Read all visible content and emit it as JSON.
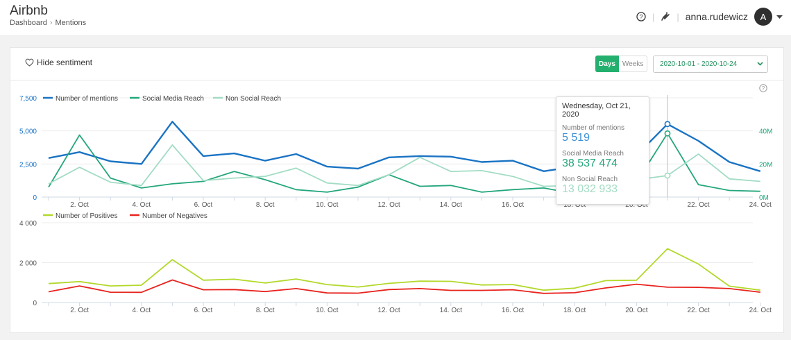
{
  "header": {
    "title": "Airbnb",
    "breadcrumb": [
      "Dashboard",
      "Mentions"
    ],
    "user": "anna.rudewicz",
    "avatar_letter": "A",
    "separator": "|",
    "crumb_separator": "›"
  },
  "toolbar": {
    "hide_sentiment": "Hide sentiment",
    "period_buttons": [
      "Days",
      "Weeks"
    ],
    "active_period": "Days",
    "date_range": "2020-10-01 - 2020-10-24"
  },
  "colors": {
    "mentions": "#1a73c4",
    "social": "#23a67c",
    "nonsocial": "#a2dcc4",
    "positives": "#b2d92a",
    "negatives": "#e8231e",
    "accent": "#23b06e"
  },
  "tooltip": {
    "date": "Wednesday, Oct 21, 2020",
    "items": [
      {
        "label": "Number of mentions",
        "value": "5 519"
      },
      {
        "label": "Social Media Reach",
        "value": "38 537 474"
      },
      {
        "label": "Non Social Reach",
        "value": "13 032 933"
      }
    ]
  },
  "chart_data": [
    {
      "type": "line",
      "x": [
        "2020-10-01",
        "2020-10-02",
        "2020-10-03",
        "2020-10-04",
        "2020-10-05",
        "2020-10-06",
        "2020-10-07",
        "2020-10-08",
        "2020-10-09",
        "2020-10-10",
        "2020-10-11",
        "2020-10-12",
        "2020-10-13",
        "2020-10-14",
        "2020-10-15",
        "2020-10-16",
        "2020-10-17",
        "2020-10-18",
        "2020-10-19",
        "2020-10-20",
        "2020-10-21",
        "2020-10-22",
        "2020-10-23",
        "2020-10-24"
      ],
      "xticks": [
        "2. Oct",
        "4. Oct",
        "6. Oct",
        "8. Oct",
        "10. Oct",
        "12. Oct",
        "14. Oct",
        "16. Oct",
        "18. Oct",
        "20. Oct",
        "22. Oct",
        "24. Oct"
      ],
      "legend_position": "top-left",
      "y_left": {
        "ticks": [
          "0",
          "2,500",
          "5,000",
          "7,500"
        ],
        "range": [
          0,
          7500
        ]
      },
      "y_right": {
        "ticks": [
          "0M",
          "20M",
          "40M"
        ],
        "range": [
          0,
          60
        ]
      },
      "series": [
        {
          "name": "Number of mentions",
          "axis": "left",
          "color": "#1a73c4",
          "values": [
            2950,
            3400,
            2700,
            2500,
            5700,
            3100,
            3300,
            2750,
            3250,
            2300,
            2150,
            3000,
            3100,
            3050,
            2650,
            2750,
            1950,
            2300,
            2800,
            3150,
            5519,
            4250,
            2650,
            1950
          ]
        },
        {
          "name": "Social Media Reach",
          "axis": "right",
          "color": "#23a67c",
          "values": [
            6,
            37.5,
            11.5,
            5.5,
            8,
            9.5,
            15.5,
            10.5,
            4.5,
            3,
            6,
            13.5,
            6.5,
            7,
            3,
            4.5,
            5.5,
            2,
            3,
            9,
            38.5,
            7.5,
            4,
            3.5
          ]
        },
        {
          "name": "Non Social Reach",
          "axis": "right",
          "color": "#a2dcc4",
          "values": [
            8,
            18,
            9,
            7,
            31.5,
            10,
            11.5,
            12.5,
            17.5,
            8.5,
            7,
            13.5,
            24,
            15.5,
            16,
            12.5,
            6.5,
            7,
            10,
            10.5,
            13,
            26,
            11,
            9.5
          ]
        }
      ]
    },
    {
      "type": "line",
      "x": [
        "2020-10-01",
        "2020-10-02",
        "2020-10-03",
        "2020-10-04",
        "2020-10-05",
        "2020-10-06",
        "2020-10-07",
        "2020-10-08",
        "2020-10-09",
        "2020-10-10",
        "2020-10-11",
        "2020-10-12",
        "2020-10-13",
        "2020-10-14",
        "2020-10-15",
        "2020-10-16",
        "2020-10-17",
        "2020-10-18",
        "2020-10-19",
        "2020-10-20",
        "2020-10-21",
        "2020-10-22",
        "2020-10-23",
        "2020-10-24"
      ],
      "xticks": [
        "2. Oct",
        "4. Oct",
        "6. Oct",
        "8. Oct",
        "10. Oct",
        "12. Oct",
        "14. Oct",
        "16. Oct",
        "18. Oct",
        "20. Oct",
        "22. Oct",
        "24. Oct"
      ],
      "legend_position": "top-left",
      "y_left": {
        "ticks": [
          "0",
          "2 000",
          "4 000"
        ],
        "range": [
          0,
          4000
        ]
      },
      "series": [
        {
          "name": "Number of Positives",
          "color": "#b2d92a",
          "values": [
            950,
            1050,
            830,
            870,
            2150,
            1120,
            1170,
            980,
            1180,
            900,
            780,
            960,
            1070,
            1060,
            880,
            900,
            620,
            720,
            1100,
            1120,
            2700,
            1930,
            820,
            620
          ]
        },
        {
          "name": "Number of Negatives",
          "color": "#e8231e",
          "values": [
            540,
            830,
            520,
            510,
            1130,
            640,
            650,
            550,
            700,
            480,
            470,
            650,
            700,
            610,
            610,
            640,
            460,
            490,
            730,
            920,
            770,
            760,
            700,
            520
          ]
        }
      ]
    }
  ]
}
